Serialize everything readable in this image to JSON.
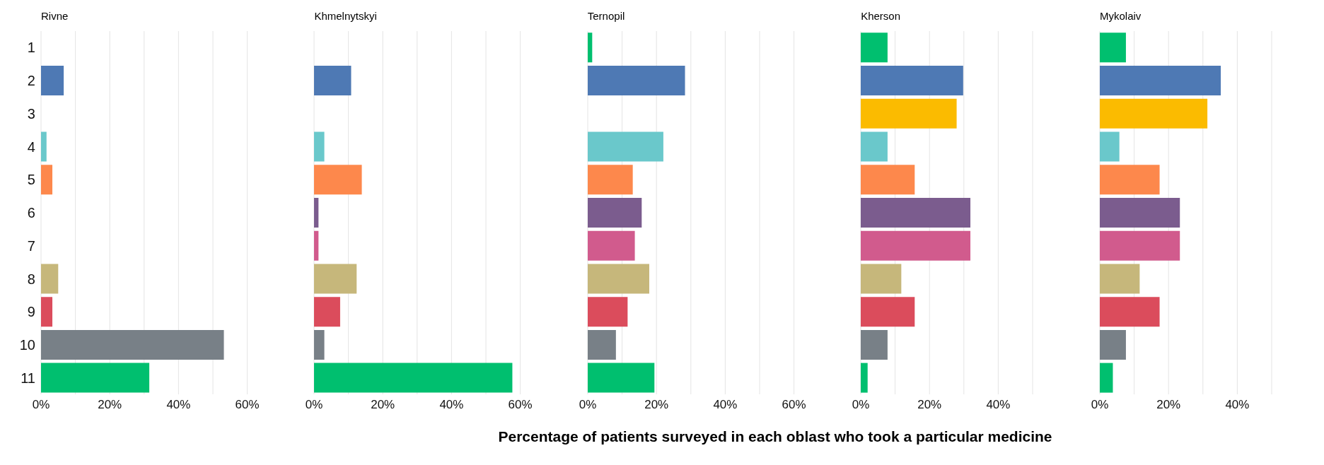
{
  "chart_data": [
    {
      "type": "bar",
      "orientation": "horizontal",
      "title": "Rivne",
      "categories": [
        "1",
        "2",
        "3",
        "4",
        "5",
        "6",
        "7",
        "8",
        "9",
        "10",
        "11"
      ],
      "values": [
        null,
        6.6,
        null,
        1.6,
        3.3,
        null,
        null,
        5.0,
        3.3,
        53.2,
        31.5
      ],
      "colors": [
        "#00bf6f",
        "#4e79b4",
        "#fbbb00",
        "#6ac8cb",
        "#fd884c",
        "#7b5c8e",
        "#d15b8d",
        "#c6b77b",
        "#db4c5c",
        "#788087",
        "#00bf6f"
      ],
      "xlim": [
        0,
        60
      ],
      "xticks": [
        {
          "value": 0,
          "label": "0%"
        },
        {
          "value": 10,
          "label": null
        },
        {
          "value": 20,
          "label": "20%"
        },
        {
          "value": 30,
          "label": null
        },
        {
          "value": 40,
          "label": "40%"
        },
        {
          "value": 50,
          "label": null
        },
        {
          "value": 60,
          "label": "60%"
        }
      ],
      "grid": "x"
    },
    {
      "type": "bar",
      "orientation": "horizontal",
      "title": "Khmelnytskyi",
      "categories": [
        "1",
        "2",
        "3",
        "4",
        "5",
        "6",
        "7",
        "8",
        "9",
        "10",
        "11"
      ],
      "values": [
        null,
        10.8,
        null,
        3.0,
        13.9,
        1.3,
        1.3,
        12.4,
        7.6,
        3.0,
        57.7
      ],
      "colors": [
        "#00bf6f",
        "#4e79b4",
        "#fbbb00",
        "#6ac8cb",
        "#fd884c",
        "#7b5c8e",
        "#d15b8d",
        "#c6b77b",
        "#db4c5c",
        "#788087",
        "#00bf6f"
      ],
      "xlim": [
        0,
        60
      ],
      "xticks": [
        {
          "value": 0,
          "label": "0%"
        },
        {
          "value": 10,
          "label": null
        },
        {
          "value": 20,
          "label": "20%"
        },
        {
          "value": 30,
          "label": null
        },
        {
          "value": 40,
          "label": "40%"
        },
        {
          "value": 50,
          "label": null
        },
        {
          "value": 60,
          "label": "60%"
        }
      ],
      "grid": "x",
      "tick_labels": "x"
    },
    {
      "type": "bar",
      "orientation": "horizontal",
      "title": "Ternopil",
      "xlabel": "Percentage of patients surveyed in each oblast who took a particular medicine",
      "categories": [
        "1",
        "2",
        "3",
        "4",
        "5",
        "6",
        "7",
        "8",
        "9",
        "10",
        "11"
      ],
      "values": [
        1.3,
        28.3,
        null,
        22.0,
        13.1,
        15.7,
        13.7,
        17.9,
        11.6,
        8.2,
        19.4
      ],
      "colors": [
        "#00bf6f",
        "#4e79b4",
        "#fbbb00",
        "#6ac8cb",
        "#fd884c",
        "#7b5c8e",
        "#d15b8d",
        "#c6b77b",
        "#db4c5c",
        "#788087",
        "#00bf6f"
      ],
      "xlim": [
        0,
        60
      ],
      "xticks": [
        {
          "value": 0,
          "label": "0%"
        },
        {
          "value": 10,
          "label": null
        },
        {
          "value": 20,
          "label": "20%"
        },
        {
          "value": 30,
          "label": null
        },
        {
          "value": 40,
          "label": "40%"
        },
        {
          "value": 50,
          "label": null
        },
        {
          "value": 60,
          "label": "60%"
        }
      ],
      "grid": "x",
      "tick_labels": "x"
    },
    {
      "type": "bar",
      "orientation": "horizontal",
      "title": "Kherson",
      "categories": [
        "1",
        "2",
        "3",
        "4",
        "5",
        "6",
        "7",
        "8",
        "9",
        "10",
        "11"
      ],
      "values": [
        7.8,
        29.8,
        27.9,
        7.8,
        15.7,
        31.9,
        31.9,
        11.8,
        15.7,
        7.8,
        2.0
      ],
      "colors": [
        "#00bf6f",
        "#4e79b4",
        "#fbbb00",
        "#6ac8cb",
        "#fd884c",
        "#7b5c8e",
        "#d15b8d",
        "#c6b77b",
        "#db4c5c",
        "#788087",
        "#00bf6f"
      ],
      "xlim": [
        0,
        50
      ],
      "xticks": [
        {
          "value": 0,
          "label": "0%"
        },
        {
          "value": 10,
          "label": null
        },
        {
          "value": 20,
          "label": "20%"
        },
        {
          "value": 30,
          "label": null
        },
        {
          "value": 40,
          "label": "40%"
        },
        {
          "value": 50,
          "label": null
        }
      ],
      "grid": "x",
      "tick_labels": "x"
    },
    {
      "type": "bar",
      "orientation": "horizontal",
      "title": "Mykolaiv",
      "categories": [
        "1",
        "2",
        "3",
        "4",
        "5",
        "6",
        "7",
        "8",
        "9",
        "10",
        "11"
      ],
      "values": [
        7.6,
        35.2,
        31.3,
        5.7,
        17.4,
        23.3,
        23.3,
        11.6,
        17.4,
        7.6,
        3.8
      ],
      "colors": [
        "#00bf6f",
        "#4e79b4",
        "#fbbb00",
        "#6ac8cb",
        "#fd884c",
        "#7b5c8e",
        "#d15b8d",
        "#c6b77b",
        "#db4c5c",
        "#788087",
        "#00bf6f"
      ],
      "xlim": [
        0,
        50
      ],
      "xticks": [
        {
          "value": 0,
          "label": "0%"
        },
        {
          "value": 10,
          "label": null
        },
        {
          "value": 20,
          "label": "20%"
        },
        {
          "value": 30,
          "label": null
        },
        {
          "value": 40,
          "label": "40%"
        },
        {
          "value": 50,
          "label": null
        }
      ],
      "grid": "x",
      "tick_labels": "x"
    }
  ]
}
